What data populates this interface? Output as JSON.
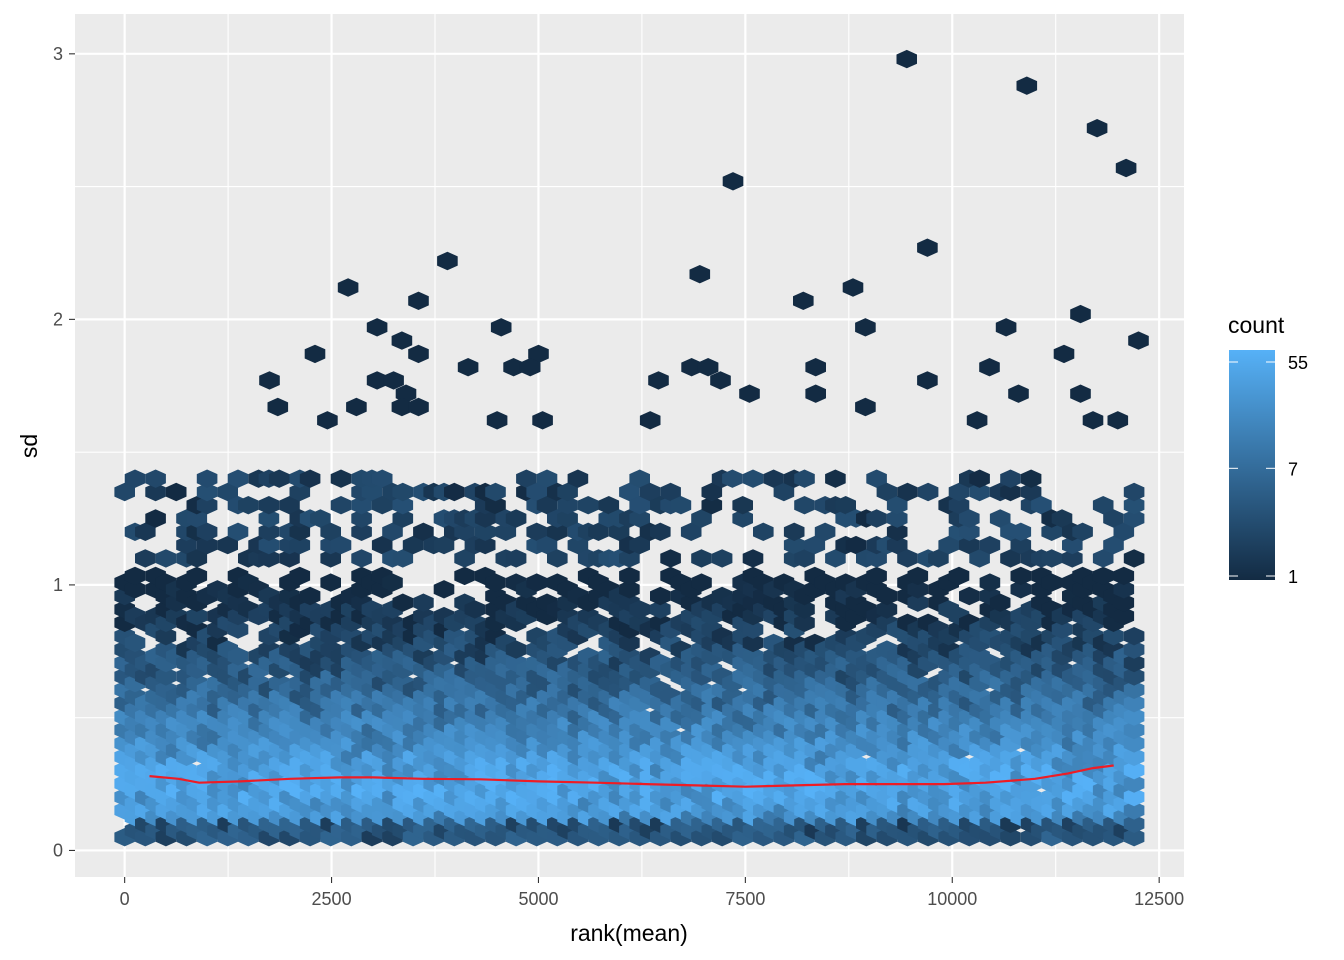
{
  "chart_data": {
    "type": "heatmap",
    "subtype": "hexbin",
    "title": "",
    "xlabel": "rank(mean)",
    "ylabel": "sd",
    "xlim": [
      -600,
      12800
    ],
    "ylim": [
      -0.1,
      3.15
    ],
    "x_ticks": [
      0,
      2500,
      5000,
      7500,
      10000,
      12500
    ],
    "y_ticks": [
      0,
      1,
      2,
      3
    ],
    "x_tick_labels": [
      "0",
      "2500",
      "5000",
      "7500",
      "10000",
      "12500"
    ],
    "y_tick_labels": [
      "0",
      "1",
      "2",
      "3"
    ],
    "grid": true,
    "colorbar": {
      "title": "count",
      "scale": "log",
      "min": 1,
      "max": 55,
      "ticks": [
        1,
        7,
        55
      ],
      "tick_labels": [
        "1",
        "7",
        "55"
      ],
      "low_color": "#132B43",
      "high_color": "#56B1F7",
      "placement": "right"
    },
    "hex_bins": {
      "x_range": [
        0,
        12300
      ],
      "y_range": [
        0.05,
        1.05
      ],
      "density_note": "counts highest near sd 0.2-0.4, decreasing with sd",
      "outliers": [
        [
          9450,
          2.98
        ],
        [
          10900,
          2.88
        ],
        [
          11750,
          2.72
        ],
        [
          12100,
          2.57
        ],
        [
          7350,
          2.52
        ],
        [
          9700,
          2.27
        ],
        [
          3900,
          2.22
        ],
        [
          6950,
          2.17
        ],
        [
          2700,
          2.12
        ],
        [
          8800,
          2.12
        ],
        [
          3550,
          2.07
        ],
        [
          8200,
          2.07
        ],
        [
          11550,
          2.02
        ],
        [
          3050,
          1.97
        ],
        [
          4550,
          1.97
        ],
        [
          8950,
          1.97
        ],
        [
          10650,
          1.97
        ],
        [
          12250,
          1.92
        ],
        [
          3350,
          1.92
        ],
        [
          2300,
          1.87
        ],
        [
          3550,
          1.87
        ],
        [
          5000,
          1.87
        ],
        [
          11350,
          1.87
        ],
        [
          4150,
          1.82
        ],
        [
          4700,
          1.82
        ],
        [
          4900,
          1.82
        ],
        [
          6850,
          1.82
        ],
        [
          7050,
          1.82
        ],
        [
          8350,
          1.82
        ],
        [
          10450,
          1.82
        ],
        [
          1750,
          1.77
        ],
        [
          3050,
          1.77
        ],
        [
          3250,
          1.77
        ],
        [
          6450,
          1.77
        ],
        [
          7200,
          1.77
        ],
        [
          9700,
          1.77
        ],
        [
          3400,
          1.72
        ],
        [
          7550,
          1.72
        ],
        [
          8350,
          1.72
        ],
        [
          10800,
          1.72
        ],
        [
          11550,
          1.72
        ],
        [
          1850,
          1.67
        ],
        [
          2800,
          1.67
        ],
        [
          3350,
          1.67
        ],
        [
          3550,
          1.67
        ],
        [
          8950,
          1.67
        ],
        [
          2450,
          1.62
        ],
        [
          4500,
          1.62
        ],
        [
          5050,
          1.62
        ],
        [
          6350,
          1.62
        ],
        [
          10300,
          1.62
        ],
        [
          11700,
          1.62
        ],
        [
          12000,
          1.62
        ]
      ]
    },
    "series": [
      {
        "name": "trend",
        "color": "#EE1C25",
        "x": [
          300,
          650,
          900,
          1400,
          2000,
          2600,
          3000,
          3600,
          4300,
          5000,
          5700,
          6300,
          6900,
          7500,
          8100,
          8700,
          9300,
          9900,
          10400,
          11000,
          11400,
          11700,
          11950
        ],
        "y": [
          0.28,
          0.27,
          0.255,
          0.26,
          0.27,
          0.275,
          0.275,
          0.27,
          0.268,
          0.26,
          0.255,
          0.25,
          0.245,
          0.24,
          0.245,
          0.25,
          0.25,
          0.25,
          0.255,
          0.27,
          0.29,
          0.31,
          0.32
        ]
      }
    ]
  }
}
